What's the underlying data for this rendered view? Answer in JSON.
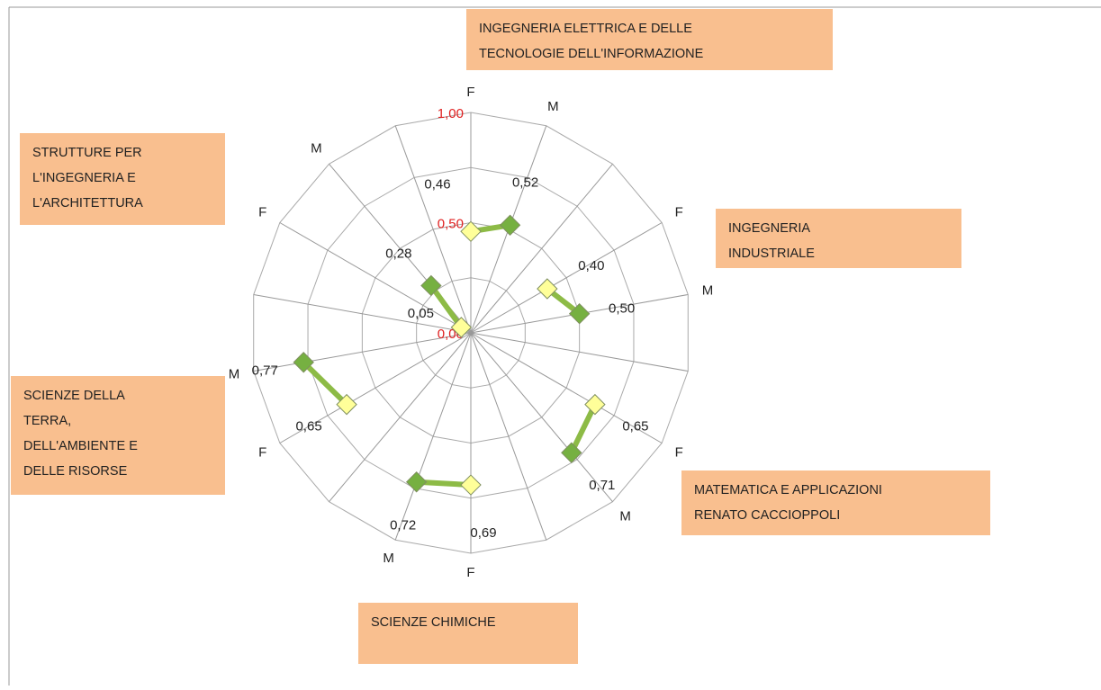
{
  "chart_data": {
    "type": "radar",
    "categories": [
      "F",
      "M",
      null,
      "F",
      "M",
      null,
      "F",
      "M",
      null,
      "F",
      "M",
      null,
      "F",
      "M",
      null,
      "F",
      "M",
      null
    ],
    "values": [
      0.46,
      0.52,
      null,
      0.4,
      0.5,
      null,
      0.65,
      0.71,
      null,
      0.69,
      0.72,
      null,
      0.65,
      0.77,
      null,
      0.05,
      0.28,
      null
    ],
    "value_labels": [
      "0,46",
      "0,52",
      null,
      "0,40",
      "0,50",
      null,
      "0,65",
      "0,71",
      null,
      "0,69",
      "0,72",
      null,
      "0,65",
      "0,77",
      null,
      "0,05",
      "0,28",
      null
    ],
    "marker_colors": [
      "#ffff99",
      "#76b041",
      null,
      "#ffff99",
      "#76b041",
      null,
      "#ffff99",
      "#76b041",
      null,
      "#ffff99",
      "#76b041",
      null,
      "#ffff99",
      "#76b041",
      null,
      "#ffff99",
      "#76b041",
      null
    ],
    "line_color": "#8dbb46",
    "ylim": [
      0,
      1
    ],
    "yticks": [
      {
        "value": 0,
        "label": "0,00"
      },
      {
        "value": 0.5,
        "label": "0,50"
      },
      {
        "value": 1,
        "label": "1,00"
      }
    ],
    "minor_yticks": [
      0.25,
      0.75
    ],
    "tick_color": "#e02020",
    "box_color": "#f9bf8f",
    "departments": [
      {
        "lines": [
          "INGEGNERIA ELETTRICA E DELLE",
          "TECNOLOGIE DELL'INFORMAZIONE"
        ]
      },
      {
        "lines": [
          "INGEGNERIA",
          "INDUSTRIALE"
        ]
      },
      {
        "lines": [
          "MATEMATICA E APPLICAZIONI",
          "RENATO CACCIOPPOLI"
        ]
      },
      {
        "lines": [
          "SCIENZE CHIMICHE"
        ]
      },
      {
        "lines": [
          "SCIENZE  DELLA",
          "TERRA,",
          "DELL'AMBIENTE E",
          "DELLE RISORSE"
        ]
      },
      {
        "lines": [
          "STRUTTURE PER",
          "L'INGEGNERIA E",
          "L'ARCHITETTURA"
        ]
      }
    ]
  }
}
